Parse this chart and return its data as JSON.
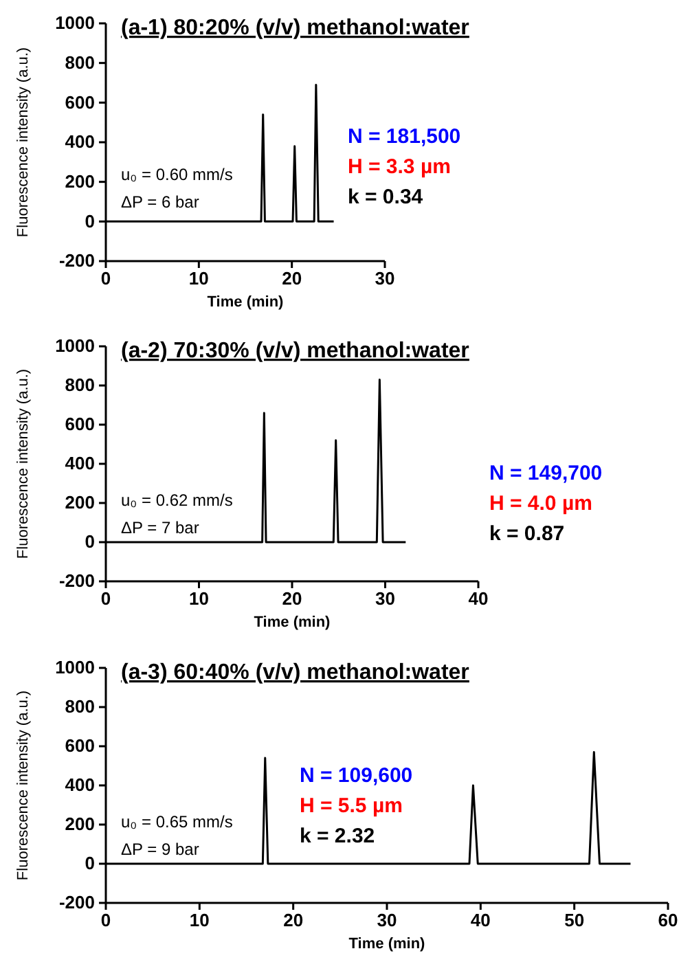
{
  "chart_data": [
    {
      "type": "line",
      "title": "(a-1) 80:20% (v/v) methanol:water",
      "xlabel": "Time (min)",
      "ylabel": "Fluorescence intensity (a.u.)",
      "xlim": [
        0,
        30
      ],
      "xticks": [
        0,
        10,
        20,
        30
      ],
      "ylim": [
        -200,
        1000
      ],
      "yticks": [
        -200,
        0,
        200,
        400,
        600,
        800,
        1000
      ],
      "grid": false,
      "marker": "none",
      "line_style": "solid",
      "series": [
        {
          "color": "#000000",
          "x": [
            0,
            16.7,
            16.9,
            17.1,
            20.1,
            20.3,
            20.5,
            22.4,
            22.6,
            22.85,
            24.5
          ],
          "values": [
            0,
            0,
            540,
            0,
            0,
            380,
            0,
            0,
            690,
            0,
            0
          ]
        }
      ],
      "annotations": [
        "u₀ = 0.60 mm/s",
        "ΔP = 6 bar",
        "N = 181,500",
        "H = 3.3 µm",
        "k = 0.34"
      ]
    },
    {
      "type": "line",
      "title": "(a-2) 70:30% (v/v) methanol:water",
      "xlabel": "Time (min)",
      "ylabel": "Fluorescence intensity (a.u.)",
      "xlim": [
        0,
        40
      ],
      "xticks": [
        0,
        10,
        20,
        30,
        40
      ],
      "ylim": [
        -200,
        1000
      ],
      "yticks": [
        -200,
        0,
        200,
        400,
        600,
        800,
        1000
      ],
      "grid": false,
      "marker": "none",
      "line_style": "solid",
      "series": [
        {
          "color": "#000000",
          "x": [
            0,
            16.8,
            17.0,
            17.2,
            24.45,
            24.7,
            24.95,
            29.1,
            29.4,
            29.75,
            32.2
          ],
          "values": [
            0,
            0,
            660,
            0,
            0,
            520,
            0,
            0,
            830,
            0,
            0
          ]
        }
      ],
      "annotations": [
        "u₀ = 0.62 mm/s",
        "ΔP = 7 bar",
        "N = 149,700",
        "H = 4.0 µm",
        "k = 0.87"
      ]
    },
    {
      "type": "line",
      "title": "(a-3) 60:40% (v/v) methanol:water",
      "xlabel": "Time (min)",
      "ylabel": "Fluorescence intensity (a.u.)",
      "xlim": [
        0,
        60
      ],
      "xticks": [
        0,
        10,
        20,
        30,
        40,
        50,
        60
      ],
      "ylim": [
        -200,
        1000
      ],
      "yticks": [
        -200,
        0,
        200,
        400,
        600,
        800,
        1000
      ],
      "grid": false,
      "marker": "none",
      "line_style": "solid",
      "series": [
        {
          "color": "#000000",
          "x": [
            0,
            16.75,
            17.0,
            17.3,
            38.8,
            39.2,
            39.7,
            51.6,
            52.1,
            52.7,
            56
          ],
          "values": [
            0,
            0,
            540,
            0,
            0,
            400,
            0,
            0,
            570,
            0,
            0
          ]
        }
      ],
      "annotations": [
        "u₀ = 0.65 mm/s",
        "ΔP = 9 bar",
        "N = 109,600",
        "H = 5.5 µm",
        "k = 2.32"
      ]
    }
  ]
}
